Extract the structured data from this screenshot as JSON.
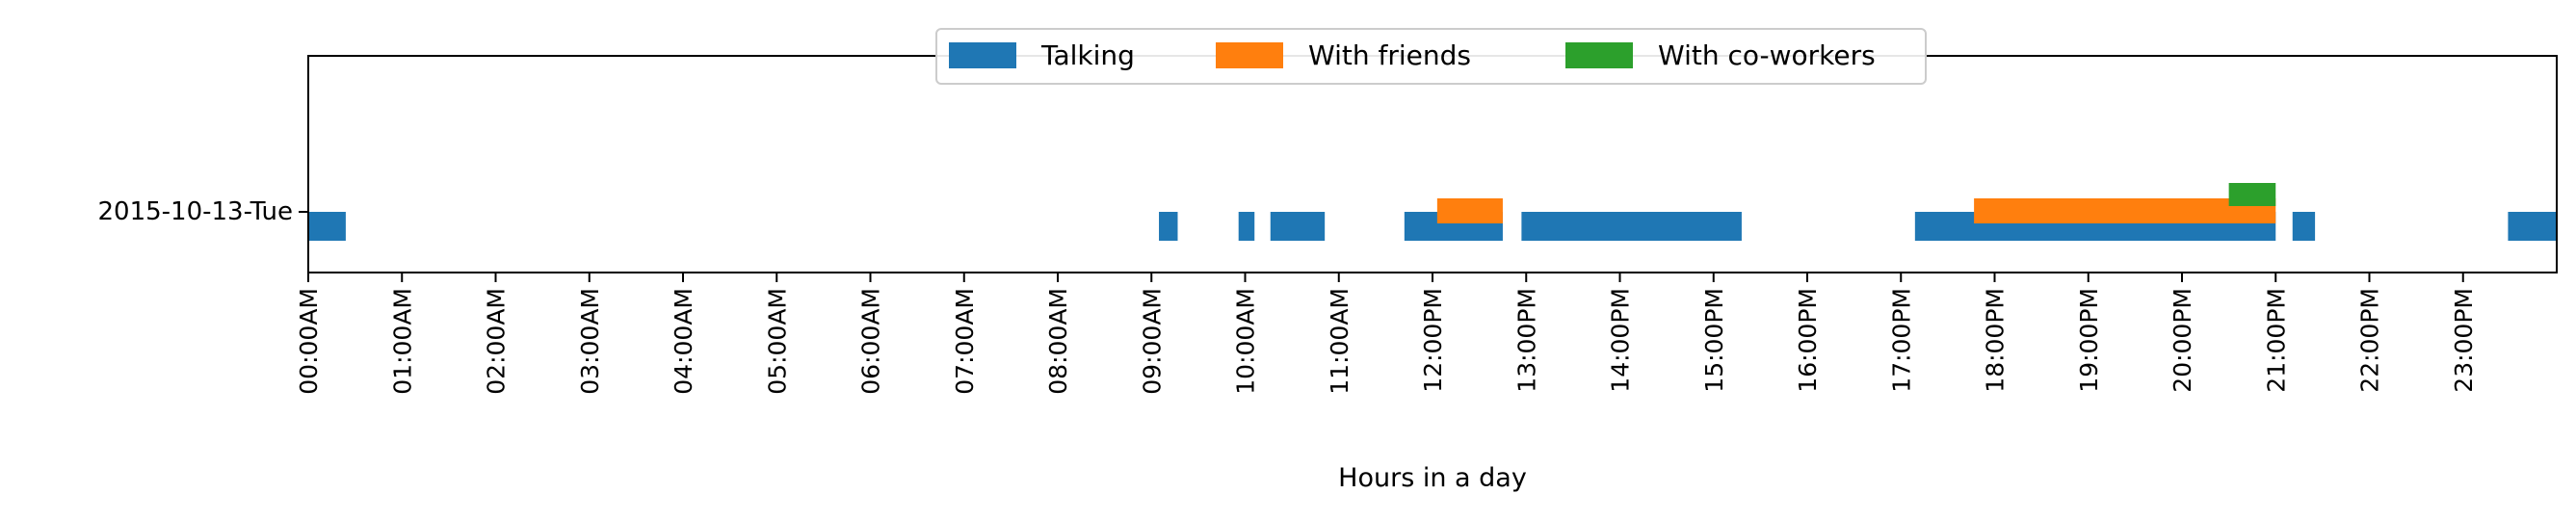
{
  "chart_data": {
    "type": "timeline",
    "xlabel": "Hours in a day",
    "xlim": [
      0,
      24
    ],
    "y_category": "2015-10-13-Tue",
    "x_ticks": [
      {
        "value": 0,
        "label": "00:00AM"
      },
      {
        "value": 1,
        "label": "01:00AM"
      },
      {
        "value": 2,
        "label": "02:00AM"
      },
      {
        "value": 3,
        "label": "03:00AM"
      },
      {
        "value": 4,
        "label": "04:00AM"
      },
      {
        "value": 5,
        "label": "05:00AM"
      },
      {
        "value": 6,
        "label": "06:00AM"
      },
      {
        "value": 7,
        "label": "07:00AM"
      },
      {
        "value": 8,
        "label": "08:00AM"
      },
      {
        "value": 9,
        "label": "09:00AM"
      },
      {
        "value": 10,
        "label": "10:00AM"
      },
      {
        "value": 11,
        "label": "11:00AM"
      },
      {
        "value": 12,
        "label": "12:00PM"
      },
      {
        "value": 13,
        "label": "13:00PM"
      },
      {
        "value": 14,
        "label": "14:00PM"
      },
      {
        "value": 15,
        "label": "15:00PM"
      },
      {
        "value": 16,
        "label": "16:00PM"
      },
      {
        "value": 17,
        "label": "17:00PM"
      },
      {
        "value": 18,
        "label": "18:00PM"
      },
      {
        "value": 19,
        "label": "19:00PM"
      },
      {
        "value": 20,
        "label": "20:00PM"
      },
      {
        "value": 21,
        "label": "21:00PM"
      },
      {
        "value": 22,
        "label": "22:00PM"
      },
      {
        "value": 23,
        "label": "23:00PM"
      }
    ],
    "legend_position": "top-center",
    "series": [
      {
        "name": "Talking",
        "color": "#1f77b4",
        "intervals": [
          [
            0.0,
            0.4
          ],
          [
            9.08,
            9.28
          ],
          [
            9.93,
            10.1
          ],
          [
            10.27,
            10.85
          ],
          [
            11.7,
            12.75
          ],
          [
            12.95,
            15.3
          ],
          [
            17.15,
            21.0
          ],
          [
            21.18,
            21.42
          ],
          [
            23.48,
            24.0
          ]
        ]
      },
      {
        "name": "With friends",
        "color": "#ff7f0e",
        "intervals": [
          [
            12.05,
            12.75
          ],
          [
            17.78,
            21.0
          ]
        ]
      },
      {
        "name": "With co-workers",
        "color": "#2ca02c",
        "intervals": [
          [
            20.5,
            21.0
          ]
        ]
      }
    ]
  }
}
